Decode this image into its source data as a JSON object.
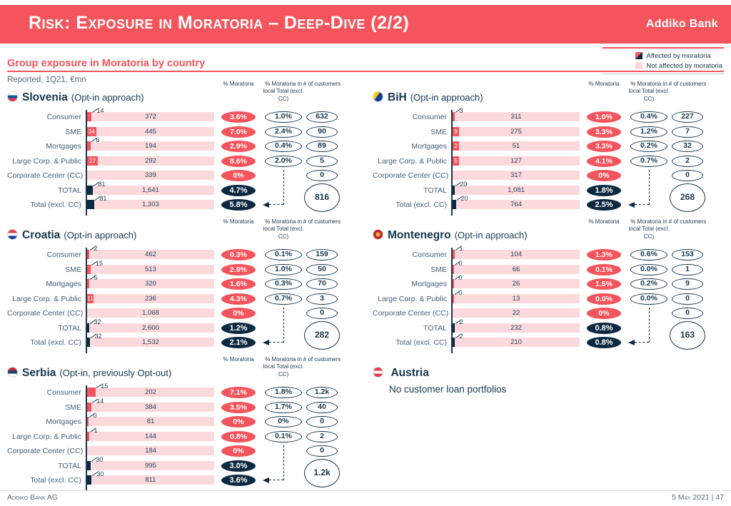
{
  "header": {
    "title": "Risk:  Exposure in Moratoria – Deep-Dive (2/2)",
    "brand": "Addiko Bank"
  },
  "legend": [
    {
      "label": "Affected by moratoria"
    },
    {
      "label": "Not affected by moratoria"
    }
  ],
  "section_title": "Group exposure in Moratoria by country",
  "subtitle": "Reported, 1Q21, €mn",
  "col_headers": [
    "% Moratoria",
    "% Moratoria in local Total (excl. CC)",
    "# of customers"
  ],
  "colors": {
    "accent_red": "#f4555c",
    "navy": "#0d2941",
    "pink": "#fbd9dc"
  },
  "countries": [
    {
      "id": "slovenia",
      "name": "Slovenia",
      "approach": "(Opt-in approach)",
      "customers_total": "816",
      "rows": [
        {
          "label": "Consumer",
          "affected": "14",
          "total": "372",
          "pct": "3.6%",
          "local": "1.0%",
          "customers": "632",
          "style": "callout"
        },
        {
          "label": "SME",
          "affected": "34",
          "total": "445",
          "pct": "7.0%",
          "local": "2.4%",
          "customers": "90",
          "style": "inside"
        },
        {
          "label": "Mortgages",
          "affected": "6",
          "total": "194",
          "pct": "2.9%",
          "local": "0.4%",
          "customers": "89",
          "style": "callout"
        },
        {
          "label": "Large Corp. & Public",
          "affected": "27",
          "total": "292",
          "pct": "8.6%",
          "local": "2.0%",
          "customers": "5",
          "style": "inside"
        },
        {
          "label": "Corporate Center (CC)",
          "affected": null,
          "total": "339",
          "pct": "0%",
          "local": null,
          "customers": "0"
        },
        {
          "label": "TOTAL",
          "affected": "81",
          "total": "1,641",
          "pct": "4.7%",
          "local": null,
          "customers": null,
          "dark": true,
          "style": "callout"
        },
        {
          "label": "Total (excl. CC)",
          "affected": "81",
          "total": "1,303",
          "pct": "5.8%",
          "local": null,
          "customers": null,
          "dark": true,
          "style": "callout"
        }
      ]
    },
    {
      "id": "bih",
      "name": "BiH",
      "approach": "(Opt-in approach)",
      "customers_total": "268",
      "rows": [
        {
          "label": "Consumer",
          "affected": "3",
          "total": "311",
          "pct": "1.0%",
          "local": "0.4%",
          "customers": "227",
          "style": "callout"
        },
        {
          "label": "SME",
          "affected": "9",
          "total": "275",
          "pct": "3.3%",
          "local": "1.2%",
          "customers": "7",
          "style": "inside"
        },
        {
          "label": "Mortgages",
          "affected": "2",
          "total": "51",
          "pct": "3.3%",
          "local": "0.2%",
          "customers": "32",
          "style": "inside"
        },
        {
          "label": "Large Corp. & Public",
          "affected": "5",
          "total": "127",
          "pct": "4.1%",
          "local": "0.7%",
          "customers": "2",
          "style": "inside"
        },
        {
          "label": "Corporate Center (CC)",
          "affected": null,
          "total": "317",
          "pct": "0%",
          "local": null,
          "customers": "0"
        },
        {
          "label": "TOTAL",
          "affected": "20",
          "total": "1,081",
          "pct": "1.8%",
          "local": null,
          "customers": null,
          "dark": true,
          "style": "callout"
        },
        {
          "label": "Total (excl. CC)",
          "affected": "20",
          "total": "764",
          "pct": "2.5%",
          "local": null,
          "customers": null,
          "dark": true,
          "style": "callout"
        }
      ]
    },
    {
      "id": "croatia",
      "name": "Croatia",
      "approach": "(Opt-in approach)",
      "customers_total": "282",
      "rows": [
        {
          "label": "Consumer",
          "affected": "2",
          "total": "462",
          "pct": "0.3%",
          "local": "0.1%",
          "customers": "159",
          "style": "callout"
        },
        {
          "label": "SME",
          "affected": "15",
          "total": "513",
          "pct": "2.9%",
          "local": "1.0%",
          "customers": "50",
          "style": "callout"
        },
        {
          "label": "Mortgages",
          "affected": "5",
          "total": "320",
          "pct": "1.6%",
          "local": "0.3%",
          "customers": "70",
          "style": "callout"
        },
        {
          "label": "Large Corp. & Public",
          "affected": "11",
          "total": "236",
          "pct": "4.3%",
          "local": "0.7%",
          "customers": "3",
          "style": "inside"
        },
        {
          "label": "Corporate Center (CC)",
          "affected": null,
          "total": "1,068",
          "pct": "0%",
          "local": null,
          "customers": "0"
        },
        {
          "label": "TOTAL",
          "affected": "32",
          "total": "2,600",
          "pct": "1.2%",
          "local": null,
          "customers": null,
          "dark": true,
          "style": "callout"
        },
        {
          "label": "Total (excl. CC)",
          "affected": "32",
          "total": "1,532",
          "pct": "2.1%",
          "local": null,
          "customers": null,
          "dark": true,
          "style": "callout"
        }
      ]
    },
    {
      "id": "montenegro",
      "name": "Montenegro",
      "approach": "(Opt-in approach)",
      "customers_total": "163",
      "rows": [
        {
          "label": "Consumer",
          "affected": "1",
          "total": "104",
          "pct": "1.3%",
          "local": "0.6%",
          "customers": "153",
          "style": "callout"
        },
        {
          "label": "SME",
          "affected": "0",
          "total": "66",
          "pct": "0.1%",
          "local": "0.0%",
          "customers": "1",
          "style": "callout"
        },
        {
          "label": "Mortgages",
          "affected": "0",
          "total": "26",
          "pct": "1.5%",
          "local": "0.2%",
          "customers": "9",
          "style": "callout"
        },
        {
          "label": "Large Corp. & Public",
          "affected": "0",
          "total": "13",
          "pct": "0.0%",
          "local": "0.0%",
          "customers": "0",
          "style": "callout"
        },
        {
          "label": "Corporate Center (CC)",
          "affected": null,
          "total": "22",
          "pct": "0%",
          "local": null,
          "customers": "0"
        },
        {
          "label": "TOTAL",
          "affected": "2",
          "total": "232",
          "pct": "0.8%",
          "local": null,
          "customers": null,
          "dark": true,
          "style": "callout"
        },
        {
          "label": "Total (excl. CC)",
          "affected": "2",
          "total": "210",
          "pct": "0.8%",
          "local": null,
          "customers": null,
          "dark": true,
          "style": "callout"
        }
      ]
    },
    {
      "id": "serbia",
      "name": "Serbia",
      "approach": "(Opt-in, previously Opt-out)",
      "customers_total": "1.2k",
      "rows": [
        {
          "label": "Consumer",
          "affected": "15",
          "total": "202",
          "pct": "7.1%",
          "local": "1.8%",
          "customers": "1.2k",
          "style": "callout"
        },
        {
          "label": "SME",
          "affected": "14",
          "total": "384",
          "pct": "3.5%",
          "local": "1.7%",
          "customers": "40",
          "style": "callout"
        },
        {
          "label": "Mortgages",
          "affected": "0",
          "total": "81",
          "pct": "0%",
          "local": "0%",
          "customers": "0",
          "style": "callout"
        },
        {
          "label": "Large Corp. & Public",
          "affected": "1",
          "total": "144",
          "pct": "0.8%",
          "local": "0.1%",
          "customers": "2",
          "style": "callout"
        },
        {
          "label": "Corporate Center (CC)",
          "affected": null,
          "total": "184",
          "pct": "0%",
          "local": null,
          "customers": "0"
        },
        {
          "label": "TOTAL",
          "affected": "30",
          "total": "995",
          "pct": "3.0%",
          "local": null,
          "customers": null,
          "dark": true,
          "style": "callout"
        },
        {
          "label": "Total (excl. CC)",
          "affected": "30",
          "total": "811",
          "pct": "3.6%",
          "local": null,
          "customers": null,
          "dark": true,
          "style": "callout"
        }
      ]
    }
  ],
  "austria": {
    "name": "Austria",
    "note": "No customer loan portfolios"
  },
  "footer": {
    "left": "Addiko Bank AG",
    "right": "5 May 2021 | 47"
  }
}
